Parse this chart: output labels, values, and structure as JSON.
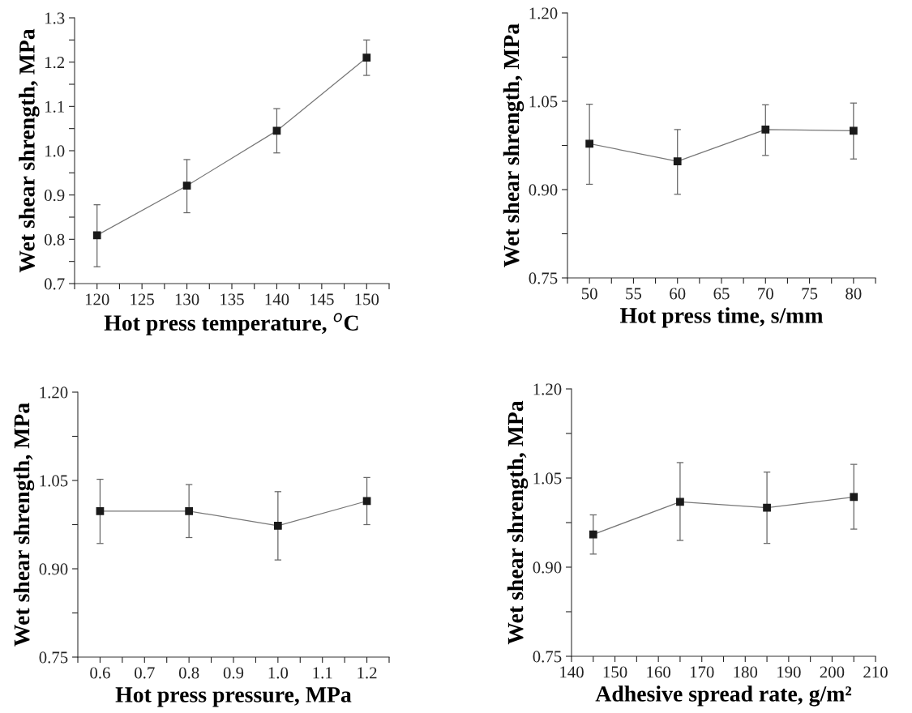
{
  "chart_data": [
    {
      "type": "line",
      "xlabel": "Hot press temperature, $^{o}$C",
      "ylabel": "Wet shear shrength, MPa",
      "x": [
        120,
        130,
        140,
        150
      ],
      "marker": "square",
      "grid": false,
      "legend": false,
      "series": [
        {
          "color": "#1a1a1a",
          "values": [
            0.809,
            0.921,
            1.045,
            1.21
          ],
          "errors": [
            [
              0.738,
              0.878
            ],
            [
              0.86,
              0.98
            ],
            [
              0.995,
              1.095
            ],
            [
              1.17,
              1.25
            ]
          ]
        }
      ],
      "xlim": [
        117.5,
        152.5
      ],
      "ylim": [
        0.7,
        1.3
      ],
      "xticks": [
        {
          "value": 117.5,
          "label": null
        },
        120,
        {
          "value": 122.5,
          "label": null
        },
        125,
        {
          "value": 127.5,
          "label": null
        },
        130,
        {
          "value": 132.5,
          "label": null
        },
        135,
        {
          "value": 137.5,
          "label": null
        },
        140,
        {
          "value": 142.5,
          "label": null
        },
        145,
        {
          "value": 147.5,
          "label": null
        },
        150,
        {
          "value": 152.5,
          "label": null
        }
      ],
      "yticks": [
        {
          "value": 0.7,
          "label": "0.7"
        },
        {
          "value": 0.75,
          "label": null
        },
        {
          "value": 0.8,
          "label": "0.8"
        },
        {
          "value": 0.85,
          "label": null
        },
        {
          "value": 0.9,
          "label": "0.9"
        },
        {
          "value": 0.95,
          "label": null
        },
        {
          "value": 1.0,
          "label": "1.0"
        },
        {
          "value": 1.05,
          "label": null
        },
        {
          "value": 1.1,
          "label": "1.1"
        },
        {
          "value": 1.15,
          "label": null
        },
        {
          "value": 1.2,
          "label": "1.2"
        },
        {
          "value": 1.25,
          "label": null
        },
        {
          "value": 1.3,
          "label": "1.3"
        }
      ]
    },
    {
      "type": "line",
      "xlabel": "Hot press time, s/mm",
      "ylabel": "Wet shear shrength, MPa",
      "x": [
        50,
        60,
        70,
        80
      ],
      "marker": "square",
      "grid": false,
      "legend": false,
      "series": [
        {
          "color": "#1a1a1a",
          "values": [
            0.978,
            0.948,
            1.002,
            1.0
          ],
          "errors": [
            [
              0.909,
              1.045
            ],
            [
              0.892,
              1.002
            ],
            [
              0.958,
              1.044
            ],
            [
              0.952,
              1.047
            ]
          ]
        }
      ],
      "xlim": [
        47.5,
        82.5
      ],
      "ylim": [
        0.75,
        1.2
      ],
      "xticks": [
        {
          "value": 47.5,
          "label": null
        },
        50,
        {
          "value": 52.5,
          "label": null
        },
        55,
        {
          "value": 57.5,
          "label": null
        },
        60,
        {
          "value": 62.5,
          "label": null
        },
        65,
        {
          "value": 67.5,
          "label": null
        },
        70,
        {
          "value": 72.5,
          "label": null
        },
        75,
        {
          "value": 77.5,
          "label": null
        },
        80,
        {
          "value": 82.5,
          "label": null
        }
      ],
      "yticks": [
        {
          "value": 0.75,
          "label": "0.75"
        },
        {
          "value": 0.825,
          "label": null
        },
        {
          "value": 0.9,
          "label": "0.90"
        },
        {
          "value": 0.975,
          "label": null
        },
        {
          "value": 1.05,
          "label": "1.05"
        },
        {
          "value": 1.125,
          "label": null
        },
        {
          "value": 1.2,
          "label": "1.20"
        }
      ]
    },
    {
      "type": "line",
      "xlabel": "Hot press pressure, MPa",
      "ylabel": "Wet shear shrength, MPa",
      "x": [
        0.6,
        0.8,
        1.0,
        1.2
      ],
      "marker": "square",
      "grid": false,
      "legend": false,
      "series": [
        {
          "color": "#1a1a1a",
          "values": [
            0.998,
            0.998,
            0.973,
            1.015
          ],
          "errors": [
            [
              0.943,
              1.052
            ],
            [
              0.953,
              1.043
            ],
            [
              0.915,
              1.031
            ],
            [
              0.975,
              1.055
            ]
          ]
        }
      ],
      "xlim": [
        0.55,
        1.25
      ],
      "ylim": [
        0.75,
        1.2
      ],
      "xticks": [
        {
          "value": 0.55,
          "label": null
        },
        {
          "value": 0.6,
          "label": "0.6"
        },
        {
          "value": 0.65,
          "label": null
        },
        {
          "value": 0.7,
          "label": "0.7"
        },
        {
          "value": 0.75,
          "label": null
        },
        {
          "value": 0.8,
          "label": "0.8"
        },
        {
          "value": 0.85,
          "label": null
        },
        {
          "value": 0.9,
          "label": "0.9"
        },
        {
          "value": 0.95,
          "label": null
        },
        {
          "value": 1.0,
          "label": "1.0"
        },
        {
          "value": 1.05,
          "label": null
        },
        {
          "value": 1.1,
          "label": "1.1"
        },
        {
          "value": 1.15,
          "label": null
        },
        {
          "value": 1.2,
          "label": "1.2"
        },
        {
          "value": 1.25,
          "label": null
        }
      ],
      "yticks": [
        {
          "value": 0.75,
          "label": "0.75"
        },
        {
          "value": 0.825,
          "label": null
        },
        {
          "value": 0.9,
          "label": "0.90"
        },
        {
          "value": 0.975,
          "label": null
        },
        {
          "value": 1.05,
          "label": "1.05"
        },
        {
          "value": 1.125,
          "label": null
        },
        {
          "value": 1.2,
          "label": "1.20"
        }
      ]
    },
    {
      "type": "line",
      "xlabel": "Adhesive spread rate, g/m²",
      "ylabel": "Wet shear shrength, MPa",
      "x": [
        145,
        165,
        185,
        205
      ],
      "marker": "square",
      "grid": false,
      "legend": false,
      "series": [
        {
          "color": "#1a1a1a",
          "values": [
            0.955,
            1.01,
            1.0,
            1.018
          ],
          "errors": [
            [
              0.922,
              0.988
            ],
            [
              0.945,
              1.076
            ],
            [
              0.94,
              1.06
            ],
            [
              0.964,
              1.073
            ]
          ]
        }
      ],
      "xlim": [
        140,
        210
      ],
      "ylim": [
        0.75,
        1.2
      ],
      "xticks": [
        140,
        {
          "value": 145,
          "label": null
        },
        150,
        {
          "value": 155,
          "label": null
        },
        160,
        {
          "value": 165,
          "label": null
        },
        170,
        {
          "value": 175,
          "label": null
        },
        180,
        {
          "value": 185,
          "label": null
        },
        190,
        {
          "value": 195,
          "label": null
        },
        200,
        {
          "value": 205,
          "label": null
        },
        210
      ],
      "yticks": [
        {
          "value": 0.75,
          "label": "0.75"
        },
        {
          "value": 0.825,
          "label": null
        },
        {
          "value": 0.9,
          "label": "0.90"
        },
        {
          "value": 0.975,
          "label": null
        },
        {
          "value": 1.05,
          "label": "1.05"
        },
        {
          "value": 1.125,
          "label": null
        },
        {
          "value": 1.2,
          "label": "1.20"
        }
      ]
    }
  ]
}
